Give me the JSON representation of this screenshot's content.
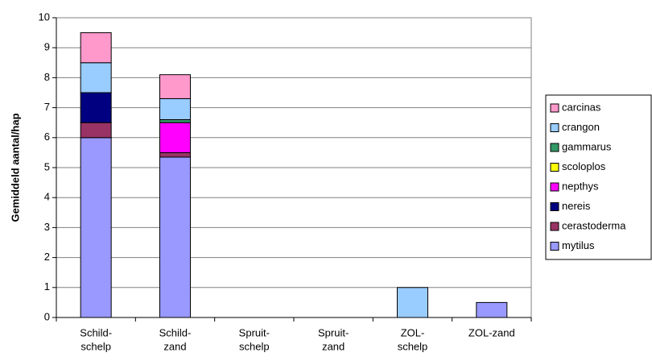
{
  "chart_data": {
    "type": "stacked_bar",
    "y_label": "Gemiddeld aantal/hap",
    "categories": [
      [
        "Schild-",
        "schelp"
      ],
      [
        "Schild-",
        "zand"
      ],
      [
        "Spruit-",
        "schelp"
      ],
      [
        "Spruit-",
        "zand"
      ],
      [
        "ZOL-",
        "schelp"
      ],
      [
        "ZOL-zand"
      ]
    ],
    "series": [
      {
        "name": "mytilus",
        "color": "#9999ff",
        "values": [
          6,
          5.35,
          0,
          0,
          0,
          0.5
        ]
      },
      {
        "name": "cerastoderma",
        "color": "#993366",
        "values": [
          0.5,
          0.15,
          0,
          0,
          0,
          0
        ]
      },
      {
        "name": "nereis",
        "color": "#000080",
        "values": [
          1,
          0,
          0,
          0,
          0,
          0
        ]
      },
      {
        "name": "nepthys",
        "color": "#ff00ff",
        "values": [
          0,
          1,
          0,
          0,
          0,
          0
        ]
      },
      {
        "name": "scoloplos",
        "color": "#ffff00",
        "values": [
          0,
          0,
          0,
          0,
          0,
          0
        ]
      },
      {
        "name": "gammarus",
        "color": "#339966",
        "values": [
          0,
          0.1,
          0,
          0,
          0,
          0
        ]
      },
      {
        "name": "crangon",
        "color": "#99ccff",
        "values": [
          1,
          0.7,
          0,
          0,
          1,
          0
        ]
      },
      {
        "name": "carcinas",
        "color": "#ff99cc",
        "values": [
          1,
          0.8,
          0,
          0,
          0,
          0
        ]
      }
    ],
    "ylim": [
      0,
      10
    ],
    "yticks": [
      0,
      1,
      2,
      3,
      4,
      5,
      6,
      7,
      8,
      9,
      10
    ],
    "grid": true,
    "legend": "right"
  }
}
